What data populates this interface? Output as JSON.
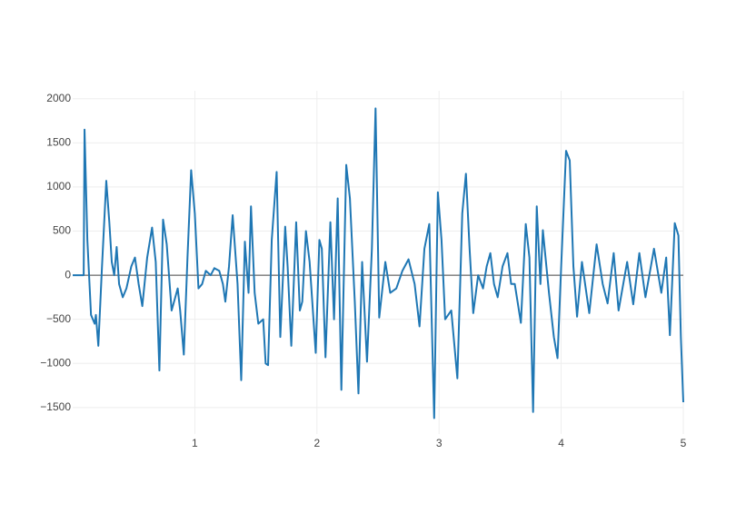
{
  "chart_data": {
    "type": "line",
    "x": [
      0,
      0.09,
      0.097,
      0.12,
      0.15,
      0.18,
      0.19,
      0.21,
      0.24,
      0.275,
      0.3,
      0.32,
      0.34,
      0.36,
      0.38,
      0.41,
      0.44,
      0.48,
      0.51,
      0.54,
      0.57,
      0.61,
      0.65,
      0.68,
      0.71,
      0.74,
      0.77,
      0.81,
      0.84,
      0.86,
      0.88,
      0.91,
      0.94,
      0.97,
      1.0,
      1.03,
      1.06,
      1.09,
      1.13,
      1.16,
      1.2,
      1.23,
      1.25,
      1.28,
      1.31,
      1.35,
      1.38,
      1.41,
      1.44,
      1.46,
      1.49,
      1.52,
      1.56,
      1.58,
      1.6,
      1.63,
      1.67,
      1.7,
      1.74,
      1.76,
      1.79,
      1.83,
      1.86,
      1.88,
      1.91,
      1.94,
      1.99,
      2.02,
      2.04,
      2.07,
      2.11,
      2.14,
      2.17,
      2.2,
      2.24,
      2.27,
      2.31,
      2.34,
      2.37,
      2.41,
      2.45,
      2.48,
      2.51,
      2.56,
      2.6,
      2.65,
      2.7,
      2.75,
      2.8,
      2.84,
      2.88,
      2.92,
      2.96,
      2.99,
      3.02,
      3.05,
      3.1,
      3.15,
      3.19,
      3.22,
      3.25,
      3.28,
      3.32,
      3.36,
      3.39,
      3.42,
      3.45,
      3.48,
      3.52,
      3.56,
      3.59,
      3.62,
      3.67,
      3.71,
      3.74,
      3.77,
      3.8,
      3.83,
      3.85,
      3.9,
      3.94,
      3.97,
      4.0,
      4.04,
      4.07,
      4.1,
      4.13,
      4.17,
      4.23,
      4.29,
      4.34,
      4.38,
      4.43,
      4.47,
      4.54,
      4.59,
      4.64,
      4.69,
      4.76,
      4.82,
      4.86,
      4.89,
      4.93,
      4.96,
      4.98,
      5.0
    ],
    "series": [
      {
        "color": "#1f77b4",
        "values": [
          0,
          0,
          1650,
          400,
          -450,
          -550,
          -450,
          -800,
          100,
          1070,
          600,
          150,
          0,
          320,
          -100,
          -250,
          -150,
          100,
          200,
          -100,
          -350,
          200,
          540,
          150,
          -1080,
          630,
          350,
          -400,
          -250,
          -150,
          -400,
          -900,
          200,
          1190,
          700,
          -150,
          -100,
          50,
          0,
          80,
          50,
          -100,
          -300,
          100,
          680,
          -100,
          -1190,
          380,
          -200,
          780,
          -200,
          -550,
          -500,
          -1000,
          -1020,
          400,
          1170,
          -700,
          550,
          100,
          -800,
          600,
          -400,
          -300,
          500,
          150,
          -880,
          400,
          300,
          -930,
          600,
          -500,
          870,
          -1300,
          1250,
          870,
          -300,
          -1340,
          150,
          -980,
          300,
          1890,
          -480,
          150,
          -200,
          -150,
          50,
          180,
          -100,
          -580,
          300,
          580,
          -1620,
          940,
          400,
          -500,
          -400,
          -1170,
          700,
          1150,
          300,
          -430,
          0,
          -150,
          100,
          250,
          -100,
          -250,
          100,
          250,
          -100,
          -100,
          -540,
          580,
          200,
          -1550,
          780,
          -100,
          510,
          -200,
          -700,
          -940,
          100,
          1410,
          1300,
          100,
          -470,
          150,
          -430,
          350,
          -100,
          -320,
          250,
          -400,
          150,
          -330,
          250,
          -250,
          300,
          -200,
          200,
          -680,
          590,
          450,
          -700,
          -1440
        ]
      }
    ],
    "xlim": [
      0,
      5
    ],
    "ylim": [
      -1800,
      2090
    ],
    "xticks": [
      1,
      2,
      3,
      4,
      5
    ],
    "yticks": [
      {
        "value": -1500,
        "label": "−1500"
      },
      {
        "value": -1000,
        "label": "−1000"
      },
      {
        "value": -500,
        "label": "−500"
      },
      0,
      500,
      1000,
      1500,
      2000
    ],
    "grid": true
  }
}
